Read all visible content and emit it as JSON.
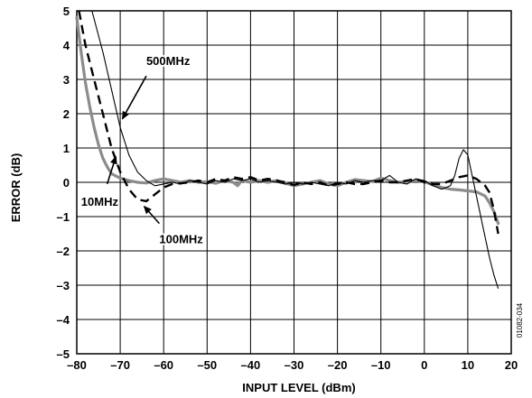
{
  "chart_data": {
    "type": "line",
    "title": "",
    "xlabel": "INPUT LEVEL (dBm)",
    "ylabel": "ERROR (dB)",
    "xlim": [
      -80,
      20
    ],
    "ylim": [
      -5,
      5
    ],
    "x_ticks": [
      -80,
      -70,
      -60,
      -50,
      -40,
      -30,
      -20,
      -10,
      0,
      10,
      20
    ],
    "x_tick_labels": [
      "–80",
      "–70",
      "–60",
      "–50",
      "–40",
      "–30",
      "–20",
      "–10",
      "0",
      "10",
      "20"
    ],
    "y_ticks": [
      5,
      4,
      3,
      2,
      1,
      0,
      -1,
      -2,
      -3,
      -4,
      -5
    ],
    "y_tick_labels": [
      "5",
      "4",
      "3",
      "2",
      "1",
      "0",
      "–1",
      "–2",
      "–3",
      "–4",
      "–5"
    ],
    "grid": true,
    "figure_id": "01082-034",
    "series": [
      {
        "name": "10MHz",
        "style": "gray-thick",
        "color": "#888888",
        "points": [
          [
            -80,
            4.8
          ],
          [
            -79,
            3.8
          ],
          [
            -78,
            2.9
          ],
          [
            -77,
            2.2
          ],
          [
            -76,
            1.6
          ],
          [
            -75,
            1.1
          ],
          [
            -74,
            0.7
          ],
          [
            -73,
            0.45
          ],
          [
            -72,
            0.25
          ],
          [
            -70,
            0.12
          ],
          [
            -68,
            0.05
          ],
          [
            -66,
            0.0
          ],
          [
            -64,
            -0.02
          ],
          [
            -62,
            0.05
          ],
          [
            -60,
            0.1
          ],
          [
            -58,
            0.05
          ],
          [
            -56,
            0.0
          ],
          [
            -54,
            0.05
          ],
          [
            -52,
            0.0
          ],
          [
            -50,
            0.02
          ],
          [
            -48,
            -0.03
          ],
          [
            -46,
            0.05
          ],
          [
            -44,
            0.0
          ],
          [
            -43,
            -0.1
          ],
          [
            -42,
            0.05
          ],
          [
            -40,
            0.0
          ],
          [
            -38,
            0.05
          ],
          [
            -36,
            0.0
          ],
          [
            -34,
            0.05
          ],
          [
            -32,
            -0.03
          ],
          [
            -30,
            -0.1
          ],
          [
            -28,
            -0.05
          ],
          [
            -26,
            0.0
          ],
          [
            -24,
            0.05
          ],
          [
            -22,
            -0.05
          ],
          [
            -20,
            -0.1
          ],
          [
            -18,
            0.0
          ],
          [
            -16,
            0.08
          ],
          [
            -14,
            0.05
          ],
          [
            -12,
            0.02
          ],
          [
            -10,
            0.12
          ],
          [
            -8,
            0.05
          ],
          [
            -6,
            0.0
          ],
          [
            -4,
            0.02
          ],
          [
            -2,
            0.05
          ],
          [
            0,
            0.02
          ],
          [
            2,
            -0.08
          ],
          [
            4,
            -0.15
          ],
          [
            6,
            -0.2
          ],
          [
            8,
            -0.22
          ],
          [
            10,
            -0.25
          ],
          [
            12,
            -0.28
          ],
          [
            14,
            -0.4
          ],
          [
            15,
            -0.6
          ],
          [
            16,
            -0.85
          ],
          [
            17,
            -1.2
          ]
        ]
      },
      {
        "name": "100MHz",
        "style": "black-dashed",
        "color": "#000000",
        "points": [
          [
            -79.5,
            5.0
          ],
          [
            -78,
            4.0
          ],
          [
            -76,
            3.0
          ],
          [
            -74,
            2.0
          ],
          [
            -72,
            1.0
          ],
          [
            -70,
            0.3
          ],
          [
            -68,
            -0.2
          ],
          [
            -66,
            -0.5
          ],
          [
            -64,
            -0.55
          ],
          [
            -62,
            -0.35
          ],
          [
            -60,
            -0.15
          ],
          [
            -58,
            -0.05
          ],
          [
            -56,
            -0.03
          ],
          [
            -54,
            0.0
          ],
          [
            -52,
            0.05
          ],
          [
            -50,
            0.0
          ],
          [
            -48,
            0.1
          ],
          [
            -46,
            0.05
          ],
          [
            -44,
            0.15
          ],
          [
            -42,
            0.1
          ],
          [
            -40,
            0.15
          ],
          [
            -38,
            0.05
          ],
          [
            -36,
            0.1
          ],
          [
            -34,
            0.05
          ],
          [
            -32,
            0.0
          ],
          [
            -30,
            -0.08
          ],
          [
            -28,
            0.0
          ],
          [
            -26,
            -0.05
          ],
          [
            -24,
            0.0
          ],
          [
            -22,
            -0.1
          ],
          [
            -20,
            -0.05
          ],
          [
            -18,
            0.0
          ],
          [
            -16,
            -0.05
          ],
          [
            -14,
            -0.05
          ],
          [
            -12,
            0.0
          ],
          [
            -10,
            0.05
          ],
          [
            -8,
            0.0
          ],
          [
            -6,
            0.0
          ],
          [
            -4,
            0.05
          ],
          [
            -2,
            0.1
          ],
          [
            0,
            0.0
          ],
          [
            2,
            -0.05
          ],
          [
            4,
            -0.05
          ],
          [
            6,
            0.05
          ],
          [
            8,
            0.15
          ],
          [
            10,
            0.2
          ],
          [
            12,
            0.1
          ],
          [
            14,
            -0.1
          ],
          [
            15,
            -0.3
          ],
          [
            16,
            -0.8
          ],
          [
            17,
            -1.5
          ]
        ]
      },
      {
        "name": "500MHz",
        "style": "black-thin",
        "color": "#000000",
        "points": [
          [
            -76.5,
            5.0
          ],
          [
            -74,
            3.8
          ],
          [
            -72,
            2.7
          ],
          [
            -70,
            1.6
          ],
          [
            -68,
            0.8
          ],
          [
            -66,
            0.3
          ],
          [
            -64,
            0.05
          ],
          [
            -62,
            -0.1
          ],
          [
            -60,
            -0.05
          ],
          [
            -58,
            0.0
          ],
          [
            -56,
            -0.05
          ],
          [
            -54,
            0.05
          ],
          [
            -52,
            0.0
          ],
          [
            -50,
            -0.05
          ],
          [
            -48,
            0.05
          ],
          [
            -46,
            0.0
          ],
          [
            -44,
            0.1
          ],
          [
            -42,
            0.05
          ],
          [
            -40,
            0.1
          ],
          [
            -38,
            0.0
          ],
          [
            -36,
            0.05
          ],
          [
            -34,
            0.0
          ],
          [
            -32,
            -0.05
          ],
          [
            -30,
            0.0
          ],
          [
            -28,
            -0.05
          ],
          [
            -26,
            0.0
          ],
          [
            -24,
            -0.05
          ],
          [
            -22,
            -0.1
          ],
          [
            -20,
            0.0
          ],
          [
            -18,
            -0.05
          ],
          [
            -16,
            0.05
          ],
          [
            -14,
            0.0
          ],
          [
            -12,
            0.05
          ],
          [
            -10,
            0.05
          ],
          [
            -8,
            0.2
          ],
          [
            -6,
            0.0
          ],
          [
            -4,
            -0.05
          ],
          [
            -2,
            0.1
          ],
          [
            0,
            0.05
          ],
          [
            2,
            -0.1
          ],
          [
            4,
            -0.2
          ],
          [
            6,
            -0.1
          ],
          [
            7,
            0.2
          ],
          [
            8,
            0.7
          ],
          [
            9,
            0.95
          ],
          [
            10,
            0.8
          ],
          [
            11,
            0.2
          ],
          [
            12,
            -0.4
          ],
          [
            13,
            -1.0
          ],
          [
            14,
            -1.6
          ],
          [
            15,
            -2.2
          ],
          [
            16,
            -2.7
          ],
          [
            17,
            -3.1
          ]
        ]
      }
    ],
    "annotations": [
      {
        "text": "500MHz",
        "label_at": [
          -64,
          3.55
        ],
        "arrow_from": [
          -64,
          3.1
        ],
        "arrow_to": [
          -69.5,
          1.85
        ]
      },
      {
        "text": "10MHz",
        "label_at": [
          -79,
          -0.55
        ],
        "arrow_from": [
          -73,
          -0.05
        ],
        "arrow_to": [
          -71,
          0.75
        ]
      },
      {
        "text": "100MHz",
        "label_at": [
          -61,
          -1.65
        ],
        "arrow_from": [
          -61,
          -1.2
        ],
        "arrow_to": [
          -64.5,
          -0.7
        ]
      }
    ]
  }
}
